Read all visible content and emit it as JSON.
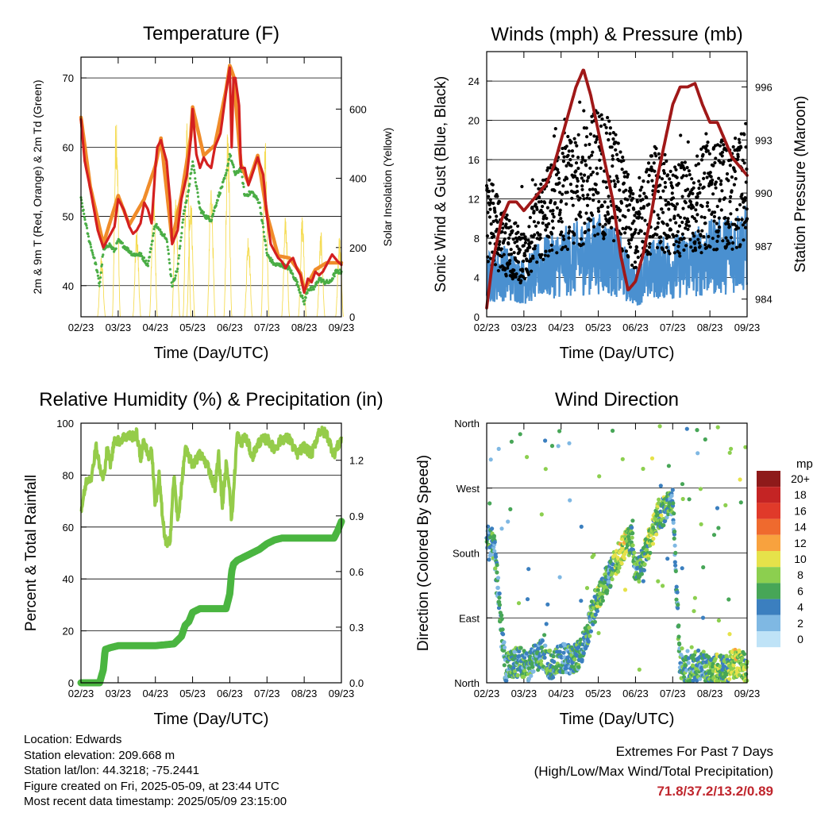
{
  "x_ticks": [
    "02/23",
    "03/23",
    "04/23",
    "05/23",
    "06/23",
    "07/23",
    "08/23",
    "09/23"
  ],
  "temperature_panel": {
    "title": "Temperature (F)",
    "xlabel": "Time (Day/UTC)",
    "ylabel_left": "2m & 9m T (Red, Orange) & 2m Td (Green)",
    "ylabel_right": "Solar Insolation (Yellow)",
    "left_ticks": [
      "40",
      "50",
      "60",
      "70"
    ],
    "right_ticks": [
      "0",
      "200",
      "400",
      "600"
    ],
    "colors": {
      "t2m": "#d42020",
      "t9m": "#f08c2a",
      "td": "#4aad45",
      "solar": "#f5dc55"
    }
  },
  "wind_panel": {
    "title": "Winds (mph) & Pressure (mb)",
    "xlabel": "Time (Day/UTC)",
    "ylabel_left": "Sonic Wind & Gust (Blue, Black)",
    "ylabel_right": "Station Pressure (Maroon)",
    "left_ticks": [
      "0",
      "4",
      "8",
      "12",
      "16",
      "20",
      "24"
    ],
    "right_ticks": [
      "984",
      "987",
      "990",
      "993",
      "996"
    ],
    "colors": {
      "wind": "#4a90d0",
      "gust": "#000000",
      "pressure": "#a01818"
    }
  },
  "humidity_panel": {
    "title": "Relative Humidity (%) & Precipitation (in)",
    "xlabel": "Time (Day/UTC)",
    "ylabel_left": "Percent & Total Rainfall",
    "left_ticks": [
      "0",
      "20",
      "40",
      "60",
      "80",
      "100"
    ],
    "right_ticks": [
      "0.0",
      "0.3",
      "0.6",
      "0.9",
      "1.2"
    ],
    "colors": {
      "rh": "#95cc4a",
      "precip": "#4ab540"
    }
  },
  "direction_panel": {
    "title": "Wind Direction",
    "xlabel": "Time (Day/UTC)",
    "ylabel_left": "Direction (Colored By Speed)",
    "left_ticks": [
      "North",
      "East",
      "South",
      "West",
      "North"
    ],
    "legend_title": "mph",
    "legend_labels": [
      "20+",
      "18",
      "16",
      "14",
      "12",
      "10",
      "8",
      "6",
      "4",
      "2",
      "0"
    ],
    "legend_colors": [
      "#8e1a1a",
      "#c42424",
      "#e03a2a",
      "#ef6a2e",
      "#f8a23e",
      "#e6e24a",
      "#8ccf4f",
      "#47a657",
      "#3b7fbf",
      "#7fb8e3",
      "#bfe3f7"
    ]
  },
  "info": {
    "location": "Location: Edwards",
    "elevation": "Station elevation: 209.668 m",
    "latlon": "Station lat/lon: 44.3218; -75.2441",
    "created": "Figure created on Fri, 2025-05-09, at 23:44 UTC",
    "recent": "Most recent data timestamp: 2025/05/09 23:15:00"
  },
  "extremes": {
    "line1": "Extremes For Past 7 Days",
    "line2": "(High/Low/Max Wind/Total Precipitation)",
    "values": "71.8/37.2/13.2/0.89"
  },
  "chart_data": [
    {
      "type": "line",
      "title": "Temperature (F)",
      "xlabel": "Time (Day/UTC)",
      "ylabel": "2m & 9m T (Red, Orange) & 2m Td (Green)",
      "y2label": "Solar Insolation (Yellow)",
      "ylim": [
        35.5,
        73
      ],
      "y2lim": [
        0,
        750
      ],
      "xlim": [
        0,
        7
      ],
      "series": [
        {
          "name": "2m T",
          "x": [
            0,
            0.1,
            0.25,
            0.45,
            0.6,
            0.75,
            0.9,
            1.0,
            1.15,
            1.3,
            1.4,
            1.5,
            1.6,
            1.7,
            1.8,
            1.9,
            2.0,
            2.05,
            2.15,
            2.3,
            2.4,
            2.45,
            2.6,
            2.7,
            2.85,
            2.95,
            3.0,
            3.1,
            3.2,
            3.3,
            3.4,
            3.5,
            3.6,
            3.75,
            3.9,
            4.0,
            4.05,
            4.1,
            4.15,
            4.25,
            4.3,
            4.4,
            4.5,
            4.6,
            4.75,
            4.9,
            5.0,
            5.1,
            5.2,
            5.3,
            5.4,
            5.5,
            5.6,
            5.7,
            5.8,
            5.9,
            6.0,
            6.1,
            6.2,
            6.3,
            6.4,
            6.5,
            6.6,
            6.75,
            6.9,
            7.0
          ],
          "values": [
            64,
            58,
            54,
            48,
            45.5,
            47,
            48.5,
            52.5,
            51,
            48.5,
            47.5,
            48,
            49,
            52,
            51,
            49,
            57,
            60,
            61,
            58,
            52,
            46,
            48,
            52.5,
            56,
            61,
            65.5,
            59,
            57,
            58.5,
            57.5,
            57,
            60,
            62,
            68,
            71.5,
            60,
            70,
            70,
            66,
            57,
            57,
            54.5,
            56,
            58.5,
            56,
            50,
            46,
            45,
            44,
            43.5,
            42.5,
            43.5,
            44,
            42.5,
            41.5,
            39,
            41,
            40.5,
            42,
            41.5,
            42,
            43,
            44.5,
            43.5,
            43
          ]
        },
        {
          "name": "9m T",
          "x": [
            0,
            0.25,
            0.6,
            1.0,
            1.3,
            1.7,
            2.0,
            2.15,
            2.45,
            2.7,
            2.95,
            3.0,
            3.3,
            3.6,
            3.9,
            4.0,
            4.1,
            4.3,
            4.5,
            4.75,
            5.0,
            5.3,
            5.6,
            5.9,
            6.0,
            6.3,
            6.6,
            7.0
          ],
          "values": [
            64.3,
            54.3,
            46,
            53,
            48.8,
            52.5,
            57.3,
            61.3,
            46.5,
            53,
            61.5,
            65.8,
            58.8,
            60.3,
            68.3,
            71.8,
            70.3,
            57.5,
            54.8,
            58.8,
            50.3,
            44.3,
            44,
            41.8,
            39.3,
            42.3,
            43.3,
            43.3
          ]
        },
        {
          "name": "2m Td",
          "x": [
            0,
            0.2,
            0.4,
            0.5,
            0.6,
            0.75,
            0.9,
            1.0,
            1.2,
            1.4,
            1.6,
            1.8,
            2.0,
            2.1,
            2.3,
            2.45,
            2.6,
            2.75,
            2.9,
            3.0,
            3.2,
            3.35,
            3.5,
            3.7,
            3.9,
            4.0,
            4.15,
            4.3,
            4.4,
            4.6,
            4.8,
            5.0,
            5.2,
            5.4,
            5.6,
            5.8,
            5.9,
            6.0,
            6.1,
            6.25,
            6.4,
            6.55,
            6.7,
            6.85,
            7.0
          ],
          "values": [
            52.5,
            47,
            43,
            40,
            45,
            46,
            45,
            46.5,
            45.5,
            44.5,
            44.5,
            43,
            49,
            48,
            47,
            40,
            42.5,
            50,
            54,
            58,
            51,
            50,
            49.5,
            53,
            56,
            59,
            56,
            57,
            53,
            53.5,
            52,
            44.5,
            43,
            43,
            42.5,
            40.5,
            39,
            37.5,
            39.5,
            39.5,
            41,
            40.5,
            40.5,
            42,
            42
          ]
        },
        {
          "name": "Solar Insolation",
          "x": [
            0.55,
            0.95,
            1.5,
            1.95,
            2.55,
            2.85,
            2.95,
            3.5,
            3.95,
            4.5,
            4.95,
            5.5,
            5.95,
            6.45,
            6.95
          ],
          "values": [
            180,
            620,
            260,
            380,
            360,
            560,
            380,
            400,
            560,
            250,
            520,
            300,
            300,
            250,
            230
          ]
        }
      ]
    },
    {
      "type": "line",
      "title": "Winds (mph) & Pressure (mb)",
      "xlabel": "Time (Day/UTC)",
      "ylabel": "Sonic Wind & Gust (Blue, Black)",
      "y2label": "Station Pressure (Maroon)",
      "ylim": [
        0,
        27
      ],
      "y2lim": [
        983,
        998
      ],
      "xlim": [
        0,
        7
      ],
      "series": [
        {
          "name": "Station Pressure",
          "x": [
            0,
            0.15,
            0.4,
            0.6,
            0.8,
            1.0,
            1.2,
            1.4,
            1.6,
            1.8,
            2.0,
            2.2,
            2.4,
            2.6,
            2.8,
            3.0,
            3.2,
            3.4,
            3.6,
            3.8,
            4.0,
            4.2,
            4.4,
            4.6,
            4.8,
            5.0,
            5.2,
            5.4,
            5.6,
            5.8,
            6.0,
            6.2,
            6.4,
            6.6,
            6.8,
            7.0
          ],
          "values": [
            983.5,
            986,
            988.5,
            989.5,
            989.5,
            989,
            989.5,
            990,
            990.5,
            991.5,
            993,
            994.5,
            996,
            997,
            995.5,
            993.5,
            991.5,
            989.5,
            986.5,
            984.5,
            985,
            986.5,
            988.5,
            991,
            993,
            995,
            996,
            996,
            996.2,
            995,
            994,
            994,
            993,
            992,
            991.5,
            991
          ]
        },
        {
          "name": "Sonic Wind",
          "x": [
            0,
            0.5,
            1.0,
            1.5,
            2.0,
            2.5,
            3.0,
            3.5,
            4.0,
            4.5,
            5.0,
            5.5,
            6.0,
            6.5,
            7.0
          ],
          "values": [
            4,
            4.5,
            3.5,
            5,
            5.5,
            6,
            6.5,
            5.5,
            3,
            5,
            5,
            5.5,
            6,
            6.5,
            7
          ]
        },
        {
          "name": "Gust",
          "x": [
            0,
            0.5,
            1.0,
            1.5,
            2.0,
            2.5,
            3.0,
            3.5,
            4.0,
            4.5,
            5.0,
            5.5,
            6.0,
            6.5,
            7.0
          ],
          "values": [
            10,
            7.5,
            6,
            10,
            12,
            13,
            15,
            13,
            8,
            12,
            11,
            11,
            12.5,
            12,
            13.5
          ]
        }
      ]
    },
    {
      "type": "line",
      "title": "Relative Humidity (%) & Precipitation (in)",
      "xlabel": "Time (Day/UTC)",
      "ylabel": "Percent & Total Rainfall",
      "ylim": [
        0,
        100
      ],
      "y2lim": [
        0,
        1.4
      ],
      "xlim": [
        0,
        7
      ],
      "series": [
        {
          "name": "Relative Humidity",
          "x": [
            0,
            0.15,
            0.3,
            0.4,
            0.5,
            0.6,
            0.7,
            0.8,
            0.9,
            1.0,
            1.2,
            1.4,
            1.5,
            1.6,
            1.7,
            1.8,
            1.9,
            2.0,
            2.1,
            2.2,
            2.3,
            2.4,
            2.5,
            2.6,
            2.7,
            2.8,
            3.0,
            3.2,
            3.4,
            3.6,
            3.7,
            3.8,
            3.9,
            4.0,
            4.05,
            4.2,
            4.3,
            4.4,
            4.5,
            4.6,
            4.8,
            5.0,
            5.2,
            5.4,
            5.6,
            5.8,
            6.0,
            6.2,
            6.4,
            6.6,
            6.8,
            7.0
          ],
          "values": [
            66,
            78,
            80,
            92,
            83,
            78,
            90,
            84,
            94,
            93,
            95,
            95,
            96,
            86,
            94,
            87,
            90,
            68,
            80,
            62,
            52,
            56,
            80,
            62,
            75,
            90,
            84,
            88,
            84,
            75,
            88,
            68,
            84,
            75,
            62,
            96,
            92,
            95,
            92,
            87,
            93,
            94,
            90,
            94,
            94,
            88,
            91,
            88,
            97,
            96,
            88,
            94
          ]
        },
        {
          "name": "Total Rainfall",
          "x": [
            0,
            0.5,
            0.6,
            0.65,
            0.8,
            1.0,
            1.5,
            2.0,
            2.5,
            2.7,
            2.8,
            2.9,
            3.0,
            3.2,
            3.5,
            3.9,
            4.0,
            4.05,
            4.1,
            4.2,
            4.5,
            4.8,
            5.0,
            5.2,
            5.4,
            5.6,
            6.0,
            6.4,
            6.8,
            6.9,
            7.0
          ],
          "values": [
            0,
            0,
            0.07,
            0.18,
            0.19,
            0.2,
            0.2,
            0.2,
            0.21,
            0.25,
            0.31,
            0.33,
            0.38,
            0.4,
            0.4,
            0.4,
            0.48,
            0.6,
            0.64,
            0.66,
            0.69,
            0.72,
            0.75,
            0.77,
            0.78,
            0.78,
            0.78,
            0.78,
            0.78,
            0.82,
            0.87
          ]
        }
      ]
    },
    {
      "type": "scatter",
      "title": "Wind Direction",
      "xlabel": "Time (Day/UTC)",
      "ylabel": "Direction (Colored By Speed)",
      "ylim": [
        0,
        360
      ],
      "xlim": [
        0,
        7
      ],
      "series": [
        {
          "name": "Wind Direction",
          "x": [
            0,
            0.1,
            0.2,
            0.5,
            0.7,
            0.9,
            1.1,
            1.3,
            1.5,
            1.7,
            1.9,
            2.1,
            2.3,
            2.5,
            2.7,
            2.9,
            3.0,
            3.1,
            3.3,
            3.5,
            3.7,
            3.9,
            4.0,
            4.2,
            4.4,
            4.6,
            4.8,
            5.0,
            5.2,
            5.4,
            5.6,
            5.8,
            6.0,
            6.2,
            6.4,
            6.6,
            6.8,
            7.0
          ],
          "values": [
            200,
            195,
            190,
            20,
            25,
            30,
            20,
            35,
            40,
            25,
            30,
            35,
            30,
            40,
            70,
            110,
            120,
            130,
            150,
            170,
            190,
            200,
            150,
            170,
            200,
            230,
            240,
            250,
            20,
            15,
            20,
            25,
            15,
            20,
            18,
            25,
            30,
            15
          ],
          "speeds": [
            5,
            4,
            5,
            4,
            5,
            6,
            5,
            4,
            5,
            6,
            5,
            4,
            5,
            6,
            5,
            6,
            7,
            6,
            5,
            8,
            9,
            6,
            5,
            6,
            8,
            7,
            6,
            4,
            5,
            5,
            6,
            5,
            6,
            7,
            6,
            8,
            9,
            7
          ]
        }
      ]
    }
  ]
}
